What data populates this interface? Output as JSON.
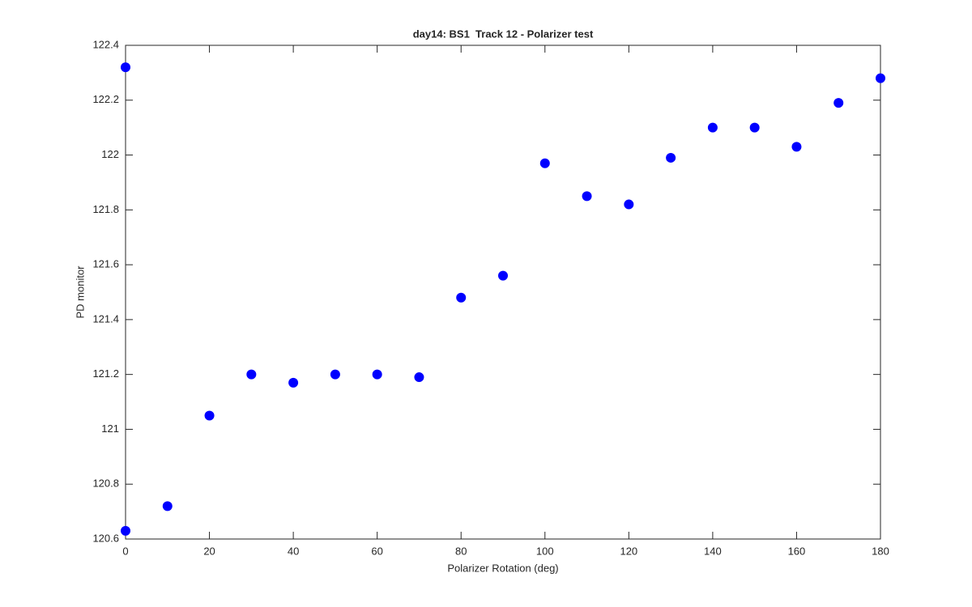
{
  "chart_data": {
    "type": "scatter",
    "title": "day14: BS1  Track 12 - Polarizer test",
    "xlabel": "Polarizer Rotation (deg)",
    "ylabel": "PD monitor",
    "series": [
      {
        "color": "#0000ff",
        "x": [
          0,
          0,
          10,
          20,
          30,
          40,
          50,
          60,
          70,
          80,
          90,
          100,
          110,
          120,
          130,
          140,
          150,
          160,
          170,
          180
        ],
        "values": [
          122.32,
          120.63,
          120.72,
          121.05,
          121.2,
          121.17,
          121.2,
          121.2,
          121.19,
          121.48,
          121.56,
          121.97,
          121.85,
          121.82,
          121.99,
          122.1,
          122.1,
          122.03,
          122.19,
          122.28
        ]
      }
    ],
    "xlim": [
      0,
      180
    ],
    "xticks": [
      0,
      20,
      40,
      60,
      80,
      100,
      120,
      140,
      160,
      180
    ],
    "ylim": [
      120.6,
      122.4
    ],
    "yticks": [
      120.6,
      120.8,
      121,
      121.2,
      121.4,
      121.6,
      121.8,
      122,
      122.2,
      122.4
    ],
    "grid": false
  }
}
